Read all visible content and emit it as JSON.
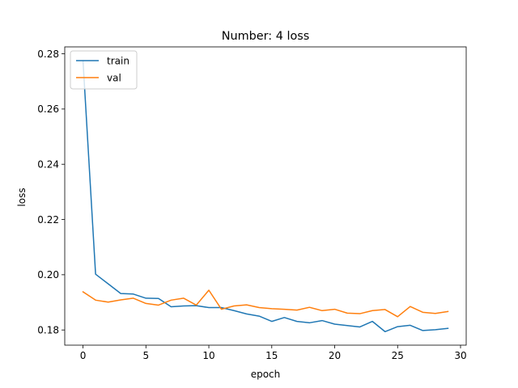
{
  "chart_data": {
    "type": "line",
    "title": "Number: 4 loss",
    "xlabel": "epoch",
    "ylabel": "loss",
    "xlim": [
      -1.45,
      30.45
    ],
    "ylim": [
      0.1745,
      0.2825
    ],
    "xticks": [
      0,
      5,
      10,
      15,
      20,
      25,
      30
    ],
    "xtick_labels": [
      "0",
      "5",
      "10",
      "15",
      "20",
      "25",
      "30"
    ],
    "yticks": [
      0.18,
      0.2,
      0.22,
      0.24,
      0.26,
      0.28
    ],
    "ytick_labels": [
      "0.18",
      "0.20",
      "0.22",
      "0.24",
      "0.26",
      "0.28"
    ],
    "legend_position": "top-left",
    "grid": false,
    "x": [
      0,
      1,
      2,
      3,
      4,
      5,
      6,
      7,
      8,
      9,
      10,
      11,
      12,
      13,
      14,
      15,
      16,
      17,
      18,
      19,
      20,
      21,
      22,
      23,
      24,
      25,
      26,
      27,
      28,
      29
    ],
    "series": [
      {
        "name": "train",
        "color": "#1f77b4",
        "values": [
          0.2775,
          0.2002,
          0.1967,
          0.1932,
          0.193,
          0.1915,
          0.1914,
          0.1884,
          0.1887,
          0.1888,
          0.1881,
          0.1881,
          0.187,
          0.1858,
          0.185,
          0.1831,
          0.1845,
          0.1831,
          0.1826,
          0.1834,
          0.1821,
          0.1816,
          0.1811,
          0.1831,
          0.1794,
          0.1812,
          0.1817,
          0.1798,
          0.1801,
          0.1806
        ]
      },
      {
        "name": "val",
        "color": "#ff7f0e",
        "values": [
          0.1938,
          0.1908,
          0.1901,
          0.1909,
          0.1915,
          0.1896,
          0.189,
          0.1908,
          0.1915,
          0.189,
          0.1944,
          0.1875,
          0.1887,
          0.1891,
          0.1881,
          0.1877,
          0.1875,
          0.1872,
          0.1882,
          0.187,
          0.1875,
          0.1861,
          0.1859,
          0.187,
          0.1874,
          0.1848,
          0.1885,
          0.1864,
          0.186,
          0.1867
        ]
      }
    ]
  }
}
